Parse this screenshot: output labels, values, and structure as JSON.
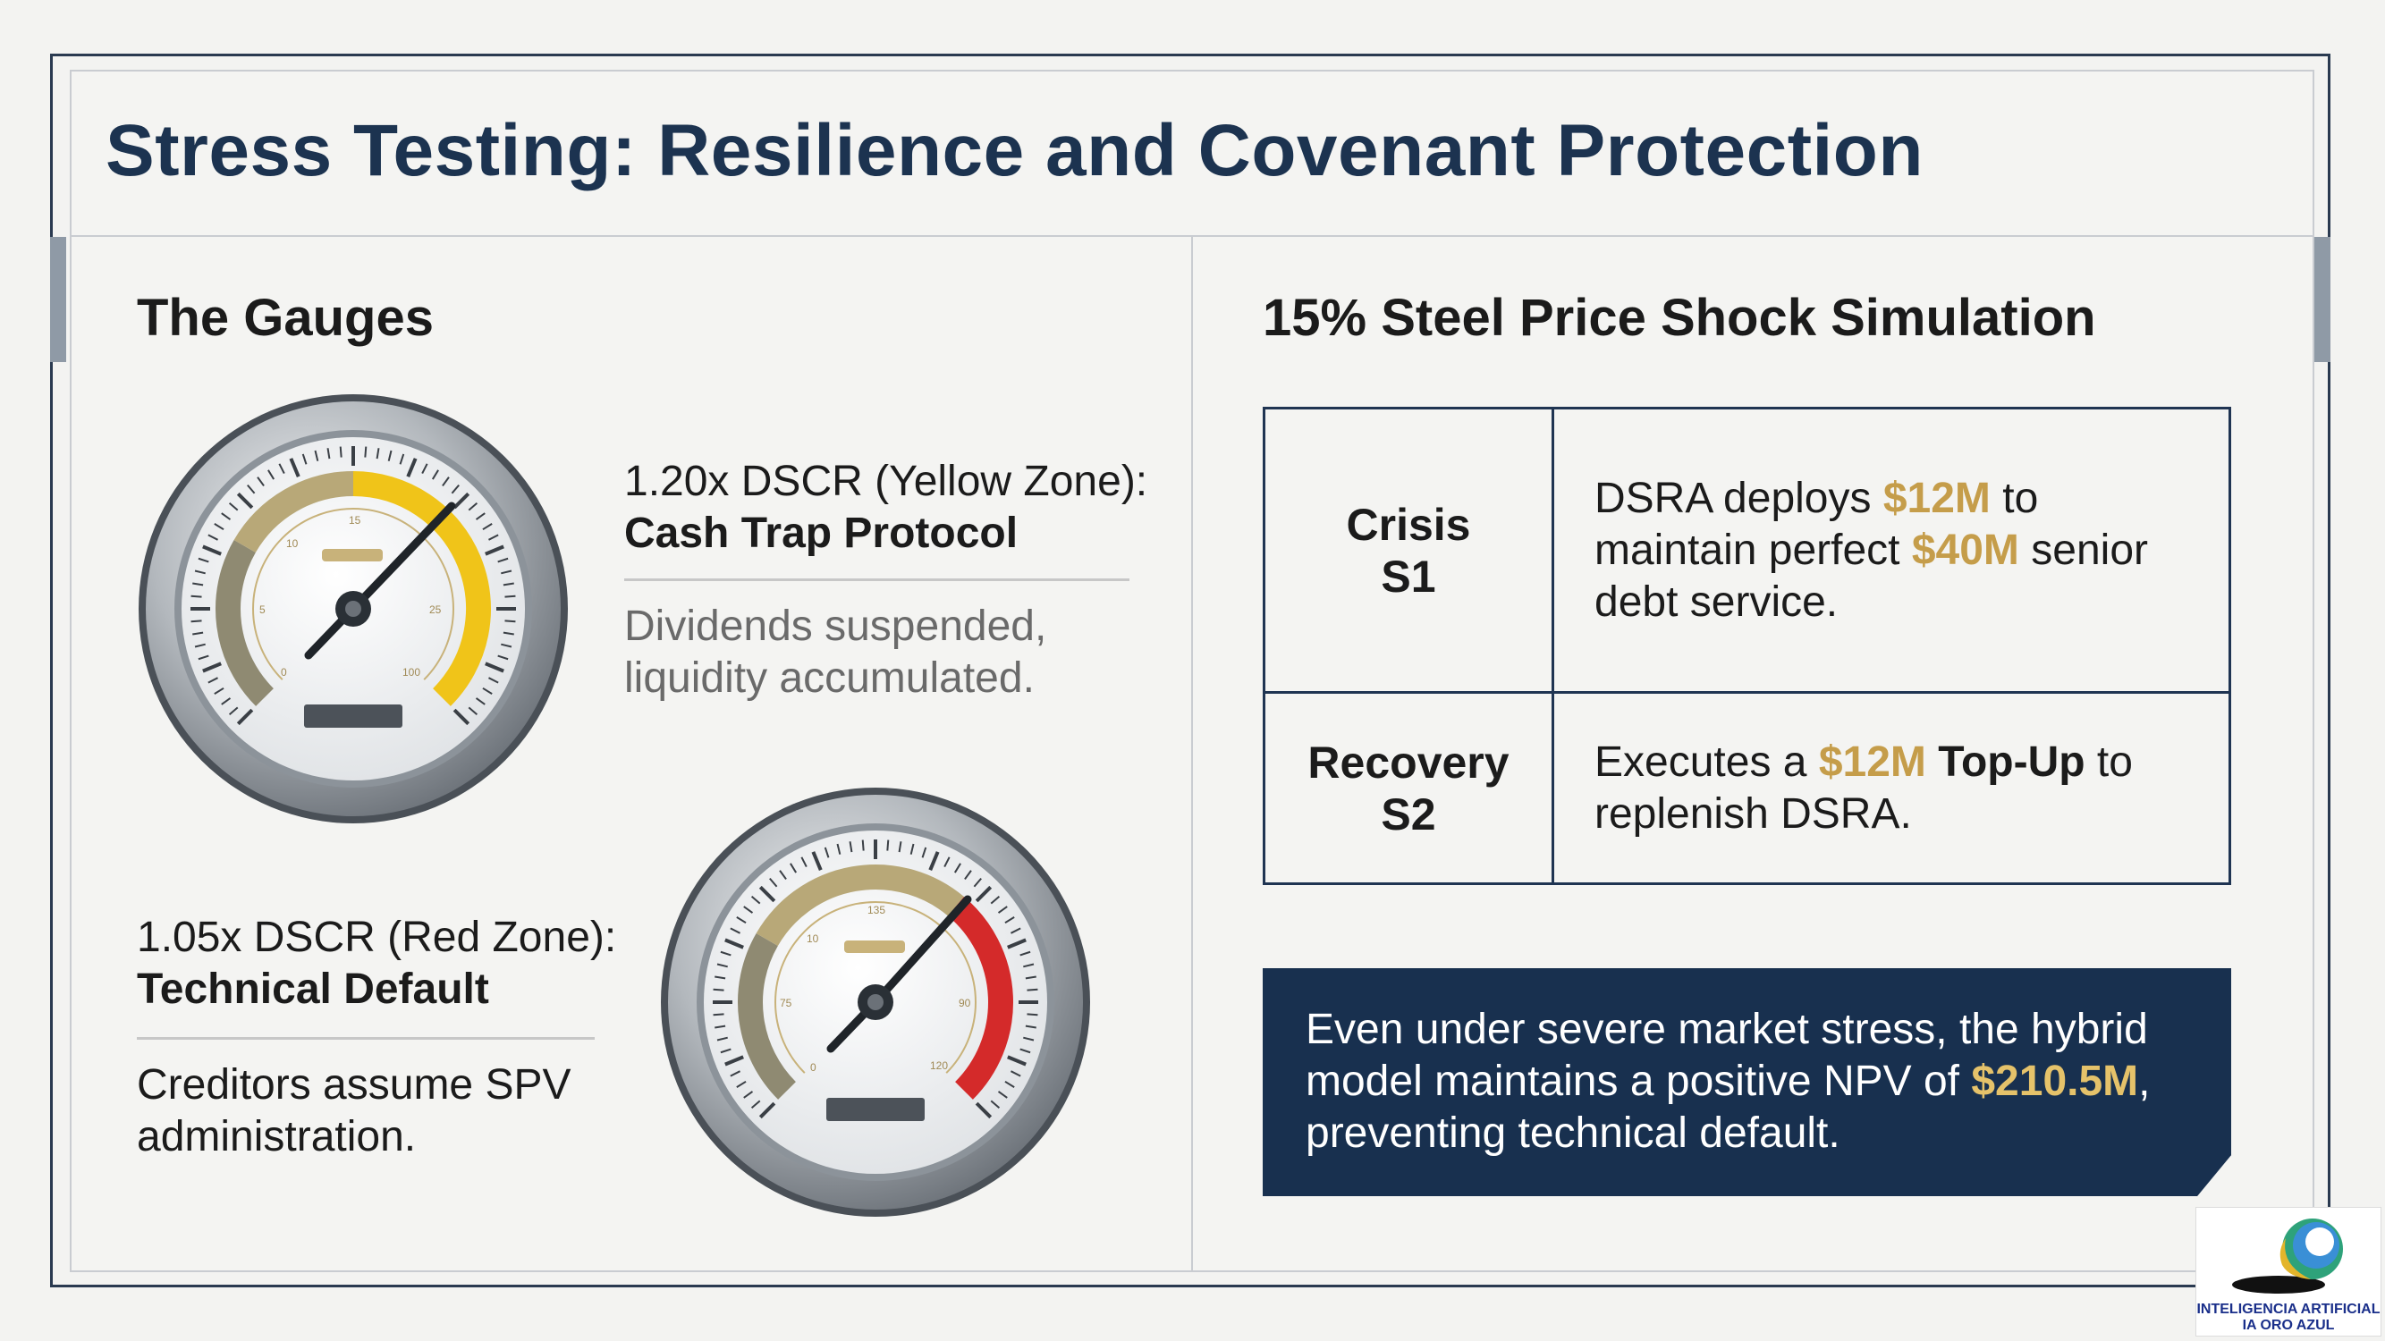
{
  "title": "Stress Testing: Resilience and Covenant Protection",
  "left_panel": {
    "heading": "The Gauges",
    "gauges": [
      {
        "label": "1.20x DSCR (Yellow Zone):",
        "status": "Cash Trap Protocol",
        "detail_line1": "Dividends suspended,",
        "detail_line2": "liquidity accumulated.",
        "zone_color": "#f0c419",
        "dial_labels": [
          "15",
          "10",
          "5",
          "0",
          "25",
          "100"
        ]
      },
      {
        "label": "1.05x DSCR (Red Zone):",
        "status": "Technical Default",
        "detail_line1": "Creditors assume SPV",
        "detail_line2": "administration.",
        "zone_color": "#d42a2a",
        "dial_labels": [
          "135",
          "10",
          "75",
          "0",
          "90",
          "120"
        ]
      }
    ]
  },
  "right_panel": {
    "heading": "15% Steel Price Shock Simulation",
    "scenarios": [
      {
        "stage_line1": "Crisis",
        "stage_line2": "S1",
        "desc_line1_a": "DSRA deploys ",
        "desc_line1_amount": "$12M",
        "desc_line1_b": " to",
        "desc_line2_a": "maintain perfect ",
        "desc_line2_amount": "$40M",
        "desc_line2_b": " senior",
        "desc_line3": "debt service."
      },
      {
        "stage_line1": "Recovery",
        "stage_line2": "S2",
        "desc_line1_a": "Executes a ",
        "desc_line1_amount": "$12M",
        "desc_line1_bold": " Top-Up",
        "desc_line1_b": " to",
        "desc_line2": "replenish DSRA."
      }
    ],
    "callout": {
      "line1": "Even under severe market stress, the hybrid",
      "line2_a": "model maintains a positive NPV of ",
      "line2_amount": "$210.5M",
      "line2_b": ",",
      "line3": "preventing technical default."
    }
  },
  "logo": {
    "line1": "INTELIGENCIA ARTIFICIAL",
    "line2": "IA ORO AZUL"
  },
  "colors": {
    "navy": "#18304f",
    "gold": "#c59d4a",
    "yellow_zone": "#f0c419",
    "red_zone": "#d42a2a"
  }
}
